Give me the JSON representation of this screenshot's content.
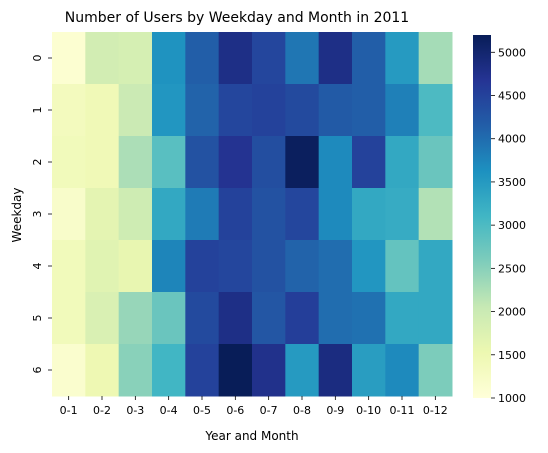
{
  "chart_data": {
    "type": "heatmap",
    "title": "Number of Users by Weekday and Month in 2011",
    "xlabel": "Year and Month",
    "ylabel": "Weekday",
    "x_categories": [
      "0-1",
      "0-2",
      "0-3",
      "0-4",
      "0-5",
      "0-6",
      "0-7",
      "0-8",
      "0-9",
      "0-10",
      "0-11",
      "0-12"
    ],
    "y_categories": [
      "0",
      "1",
      "2",
      "3",
      "4",
      "5",
      "6"
    ],
    "values": [
      [
        1100,
        1900,
        1850,
        3600,
        4150,
        4800,
        4450,
        3900,
        4800,
        4150,
        3500,
        2300
      ],
      [
        1350,
        1450,
        2000,
        3550,
        4100,
        4450,
        4500,
        4400,
        4200,
        4150,
        3800,
        3000
      ],
      [
        1400,
        1450,
        2250,
        2900,
        4300,
        4700,
        4350,
        5150,
        3700,
        4500,
        3300,
        2750
      ],
      [
        1200,
        1650,
        1950,
        3300,
        3850,
        4500,
        4300,
        4450,
        3700,
        3300,
        3250,
        2200
      ],
      [
        1400,
        1700,
        1600,
        3750,
        4500,
        4450,
        4300,
        4100,
        4000,
        3550,
        2800,
        3300
      ],
      [
        1400,
        1800,
        2400,
        2750,
        4400,
        4800,
        4250,
        4550,
        4000,
        3950,
        3300,
        3300
      ],
      [
        1150,
        1500,
        2500,
        3100,
        4500,
        5200,
        4750,
        3500,
        4850,
        3450,
        3700,
        2600
      ]
    ],
    "colorbar": {
      "min": 1000,
      "max": 5200,
      "ticks": [
        1000,
        1500,
        2000,
        2500,
        3000,
        3500,
        4000,
        4500,
        5000
      ]
    },
    "colormap": "YlGnBu"
  }
}
